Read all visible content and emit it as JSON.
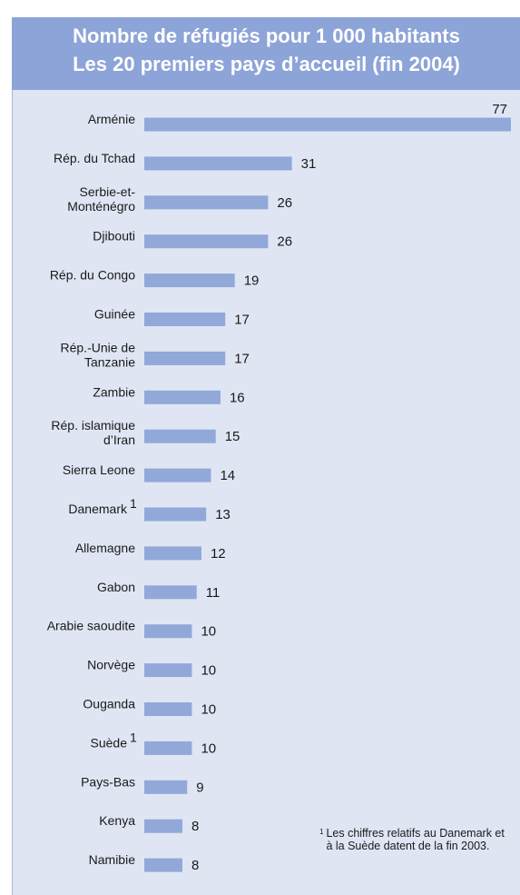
{
  "chart_data": {
    "type": "bar",
    "orientation": "horizontal",
    "title": "Nombre de réfugiés pour 1 000 habitants",
    "subtitle": "Les 20 premiers pays d’accueil (fin 2004)",
    "categories": [
      [
        "Arménie"
      ],
      [
        "Rép. du Tchad"
      ],
      [
        "Serbie-et-",
        "Monténégro"
      ],
      [
        "Djibouti"
      ],
      [
        "Rép. du Congo"
      ],
      [
        "Guinée"
      ],
      [
        "Rép.-Unie de",
        "Tanzanie"
      ],
      [
        "Zambie"
      ],
      [
        "Rép. islamique",
        "d’Iran"
      ],
      [
        "Sierra Leone"
      ],
      [
        "Danemark"
      ],
      [
        "Allemagne"
      ],
      [
        "Gabon"
      ],
      [
        "Arabie saoudite"
      ],
      [
        "Norvège"
      ],
      [
        "Ouganda"
      ],
      [
        "Suède"
      ],
      [
        "Pays-Bas"
      ],
      [
        "Kenya"
      ],
      [
        "Namibie"
      ]
    ],
    "footnote_marks": [
      "",
      "",
      "",
      "",
      "",
      "",
      "",
      "",
      "",
      "",
      "1",
      "",
      "",
      "",
      "",
      "",
      "1",
      "",
      "",
      ""
    ],
    "values": [
      77,
      31,
      26,
      26,
      19,
      17,
      17,
      16,
      15,
      14,
      13,
      12,
      11,
      10,
      10,
      10,
      10,
      9,
      8,
      8
    ],
    "xlim": [
      0,
      77
    ],
    "grid": false,
    "legend": "none",
    "bar_color": "#91a8d9",
    "header_color": "#8da4d8",
    "background_color": "#dfe5f3"
  },
  "footnote": {
    "mark": "1",
    "text": "Les chiffres relatifs au Danemark et à la Suède datent de la fin 2003."
  }
}
